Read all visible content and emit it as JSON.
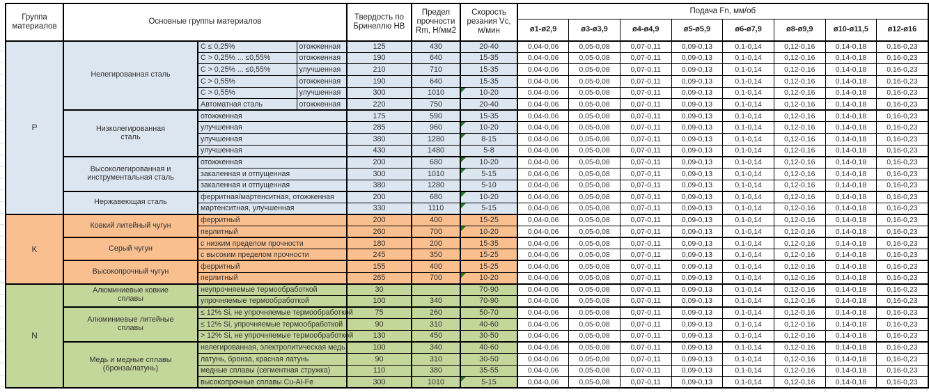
{
  "header": {
    "col_group": "Группа материалов",
    "col_main": "Основные группы материалов",
    "col_hb": "Твердость по Бринеллю HB",
    "col_rm": "Предел прочности Rm, Н/мм2",
    "col_vc": "Скорость резания Vc, м/мин",
    "feed_title": "Подача Fn, мм/об",
    "feed_cols": [
      "ø1-ø2,9",
      "ø3-ø3,9",
      "ø4-ø4,9",
      "ø5-ø5,9",
      "ø6-ø7,9",
      "ø8-ø9,9",
      "ø10-ø11,5",
      "ø12-ø16"
    ]
  },
  "feeds_per_row": [
    "0,04-0,06",
    "0,05-0,08",
    "0,07-0,11",
    "0,09-0,13",
    "0,1-0,14",
    "0,12-0,16",
    "0,14-0,18",
    "0,16-0,23"
  ],
  "colors": {
    "section_p": "#dce6f1",
    "section_k": "#fabf8f",
    "section_n": "#c4d79b",
    "flag": "#217a21",
    "border": "#000000",
    "text": "#303030"
  },
  "sections": [
    {
      "code": "P",
      "color_key": "p",
      "groups": [
        {
          "name": "Нелегированная сталь",
          "split": true,
          "rows": [
            {
              "c1": "C ≤ 0,25%",
              "c2": "отожженная",
              "hb": "125",
              "rm": "430",
              "vc": "20-40",
              "flag": false
            },
            {
              "c1": "C > 0,25% ... ≤0,55%",
              "c2": "отожженная",
              "hb": "190",
              "rm": "640",
              "vc": "15-35",
              "flag": false
            },
            {
              "c1": "C > 0,25% ... ≤0,55%",
              "c2": "улучшенная",
              "hb": "210",
              "rm": "710",
              "vc": "15-35",
              "flag": false
            },
            {
              "c1": "C > 0,55%",
              "c2": "отожженная",
              "hb": "190",
              "rm": "640",
              "vc": "15-35",
              "flag": false
            },
            {
              "c1": "C > 0,55%",
              "c2": "улучшенная",
              "hb": "300",
              "rm": "1010",
              "vc": "10-20",
              "flag": true
            },
            {
              "c1": "Автоматная сталь",
              "c2": "отожженная",
              "hb": "220",
              "rm": "750",
              "vc": "20-40",
              "flag": false
            }
          ]
        },
        {
          "name": "Низколегированная\nсталь",
          "split": false,
          "rows": [
            {
              "c1": "отожженная",
              "hb": "175",
              "rm": "590",
              "vc": "15-35",
              "flag": false
            },
            {
              "c1": "улучшенная",
              "hb": "285",
              "rm": "960",
              "vc": "10-20",
              "flag": true
            },
            {
              "c1": "улучшенная",
              "hb": "380",
              "rm": "1280",
              "vc": "8-15",
              "flag": true
            },
            {
              "c1": "улучшенная",
              "hb": "430",
              "rm": "1480",
              "vc": "5-8",
              "flag": false
            }
          ]
        },
        {
          "name": "Высоколегированная и\nинструментальная сталь",
          "split": false,
          "rows": [
            {
              "c1": "отожженная",
              "hb": "200",
              "rm": "680",
              "vc": "10-20",
              "flag": true
            },
            {
              "c1": "закаленная и отпущенная",
              "hb": "300",
              "rm": "1010",
              "vc": "5-15",
              "flag": true
            },
            {
              "c1": "закаленная и отпущенная",
              "hb": "380",
              "rm": "1280",
              "vc": "5-10",
              "flag": false
            }
          ]
        },
        {
          "name": "Нержавеющая сталь",
          "split": false,
          "rows": [
            {
              "c1": "ферритная/мартенситная, отожженная",
              "hb": "200",
              "rm": "680",
              "vc": "10-20",
              "flag": true
            },
            {
              "c1": "мартенситная, улучшенная",
              "hb": "330",
              "rm": "1110",
              "vc": "5-15",
              "flag": true
            }
          ]
        }
      ]
    },
    {
      "code": "K",
      "color_key": "k",
      "groups": [
        {
          "name": "Ковкий литейный чугун",
          "split": false,
          "rows": [
            {
              "c1": "ферритный",
              "hb": "200",
              "rm": "400",
              "vc": "15-25",
              "flag": false
            },
            {
              "c1": "перлитный",
              "hb": "260",
              "rm": "700",
              "vc": "10-20",
              "flag": true
            }
          ]
        },
        {
          "name": "Серый чугун",
          "split": false,
          "rows": [
            {
              "c1": "с низким пределом прочности",
              "hb": "180",
              "rm": "200",
              "vc": "15-35",
              "flag": false
            },
            {
              "c1": "с высоким пределом прочности",
              "hb": "245",
              "rm": "350",
              "vc": "15-25",
              "flag": false
            }
          ]
        },
        {
          "name": "Высокопрочный чугун",
          "split": false,
          "rows": [
            {
              "c1": "ферритный",
              "hb": "155",
              "rm": "400",
              "vc": "15-25",
              "flag": false
            },
            {
              "c1": "перлитный",
              "hb": "265",
              "rm": "700",
              "vc": "10-20",
              "flag": true
            }
          ]
        }
      ]
    },
    {
      "code": "N",
      "color_key": "n",
      "groups": [
        {
          "name": "Алюминиевые ковкие\nсплавы",
          "split": false,
          "rows": [
            {
              "c1": "неупрочняемые термообработкой",
              "hb": "30",
              "rm": "",
              "vc": "70-90",
              "flag": false
            },
            {
              "c1": "упрочняемые термообработкой",
              "hb": "100",
              "rm": "340",
              "vc": "70-90",
              "flag": false
            }
          ]
        },
        {
          "name": "Алюминиевые литейные\nсплавы",
          "split": false,
          "rows": [
            {
              "c1": "≤ 12% Si, не упрочняемые термообработкой",
              "hb": "75",
              "rm": "260",
              "vc": "50-70",
              "flag": false
            },
            {
              "c1": "≤ 12% Si, упрочняемые термообработкой",
              "hb": "90",
              "rm": "310",
              "vc": "40-60",
              "flag": false
            },
            {
              "c1": "> 12% Si, не упрочняемые термообработкой",
              "hb": "130",
              "rm": "450",
              "vc": "30-50",
              "flag": false
            }
          ]
        },
        {
          "name": "Медь и медные сплавы\n(бронза/латунь)",
          "split": false,
          "rows": [
            {
              "c1": "нелегированная, электролитическая медь",
              "hb": "100",
              "rm": "340",
              "vc": "40-60",
              "flag": false
            },
            {
              "c1": "латунь, бронза, красная латунь",
              "hb": "90",
              "rm": "310",
              "vc": "30-50",
              "flag": false
            },
            {
              "c1": "медные сплавы (сегментная стружка)",
              "hb": "110",
              "rm": "380",
              "vc": "35-55",
              "flag": false
            },
            {
              "c1": "высокопрочные сплавы Cu-Al-Fe",
              "hb": "300",
              "rm": "1010",
              "vc": "5-15",
              "flag": true
            }
          ]
        }
      ]
    }
  ]
}
